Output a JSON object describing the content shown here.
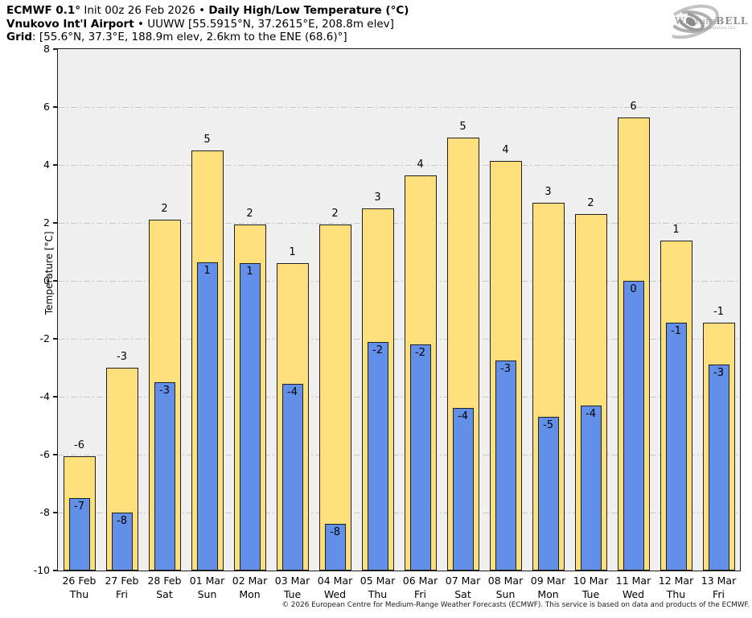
{
  "header": {
    "line1_bold1": "ECMWF 0.1°",
    "line1_regular": " Init 00z 26 Feb 2026 • ",
    "line1_bold2": "Daily High/Low Temperature (°C)",
    "line2_bold": "Vnukovo Int'l Airport",
    "line2_regular": " • UUWW [55.5915°N, 37.2615°E, 208.8m elev]",
    "line3_bold": "Grid",
    "line3_regular": ": [55.6°N, 37.3°E, 188.9m elev, 2.6km to the ENE (68.6)°]"
  },
  "logo": {
    "part1": "Weather",
    "part2": "BELL",
    "sub": "Analytics LLC"
  },
  "footer": "© 2026 European Centre for Medium-Range Weather Forecasts (ECMWF). This service is based on data and products of the ECMWF.",
  "chart_data": {
    "type": "bar",
    "title": "Daily High/Low Temperature (°C)",
    "xlabel": "",
    "ylabel": "Temperature [°C]",
    "ylim": [
      -10,
      8
    ],
    "yticks": [
      8,
      6,
      4,
      2,
      0,
      -2,
      -4,
      -6,
      -8,
      -10
    ],
    "grid": true,
    "plot_bg": "#f0f0f0",
    "categories": [
      {
        "date": "26 Feb",
        "day": "Thu"
      },
      {
        "date": "27 Feb",
        "day": "Fri"
      },
      {
        "date": "28 Feb",
        "day": "Sat"
      },
      {
        "date": "01 Mar",
        "day": "Sun"
      },
      {
        "date": "02 Mar",
        "day": "Mon"
      },
      {
        "date": "03 Mar",
        "day": "Tue"
      },
      {
        "date": "04 Mar",
        "day": "Wed"
      },
      {
        "date": "05 Mar",
        "day": "Thu"
      },
      {
        "date": "06 Mar",
        "day": "Fri"
      },
      {
        "date": "07 Mar",
        "day": "Sat"
      },
      {
        "date": "08 Mar",
        "day": "Sun"
      },
      {
        "date": "09 Mar",
        "day": "Mon"
      },
      {
        "date": "10 Mar",
        "day": "Tue"
      },
      {
        "date": "11 Mar",
        "day": "Wed"
      },
      {
        "date": "12 Mar",
        "day": "Thu"
      },
      {
        "date": "13 Mar",
        "day": "Fri"
      }
    ],
    "series": [
      {
        "name": "Daily High",
        "color": "#FDE07B",
        "labels": [
          -6,
          -3,
          2,
          5,
          2,
          1,
          2,
          3,
          4,
          5,
          4,
          3,
          2,
          6,
          1,
          -1
        ],
        "values": [
          -6.05,
          -3.0,
          2.1,
          4.5,
          1.95,
          0.6,
          1.95,
          2.5,
          3.65,
          4.95,
          4.15,
          2.7,
          2.3,
          5.65,
          1.4,
          -1.45
        ]
      },
      {
        "name": "Daily Low",
        "color": "#6290E8",
        "labels": [
          -7,
          -8,
          -3,
          1,
          1,
          -4,
          -8,
          -2,
          -2,
          -4,
          -3,
          -5,
          -4,
          0,
          -1,
          -3
        ],
        "values": [
          -7.5,
          -8.0,
          -3.5,
          0.65,
          0.6,
          -3.55,
          -8.4,
          -2.1,
          -2.2,
          -4.4,
          -2.75,
          -4.7,
          -4.3,
          0.0,
          -1.45,
          -2.9
        ]
      }
    ]
  }
}
